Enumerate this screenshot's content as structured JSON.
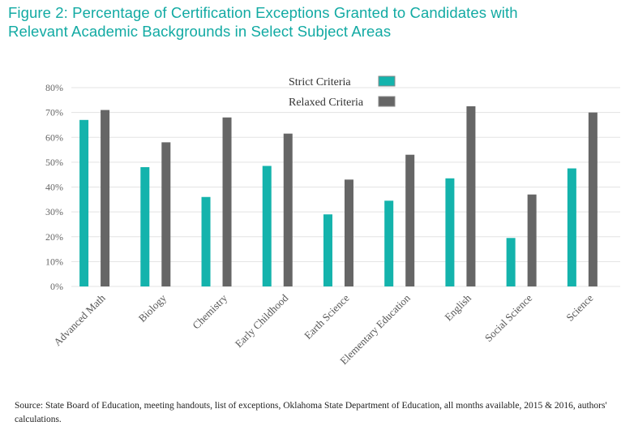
{
  "title_line1": "Figure 2: Percentage of Certification Exceptions Granted to Candidates with",
  "title_line2": "Relevant Academic Backgrounds in Select Subject Areas",
  "source": "Source: State Board of Education, meeting handouts, list of exceptions, Oklahoma State Department of Education, all months available, 2015 & 2016, authors' calculations.",
  "colors": {
    "strict": "#14b3ac",
    "relaxed": "#666666",
    "grid": "#e3e3e3",
    "title": "#12aaa3"
  },
  "chart_data": {
    "type": "bar",
    "title": "Figure 2: Percentage of Certification Exceptions Granted to Candidates with Relevant Academic Backgrounds in Select Subject Areas",
    "xlabel": "",
    "ylabel": "",
    "ylim": [
      0,
      80
    ],
    "yticks": [
      0,
      10,
      20,
      30,
      40,
      50,
      60,
      70,
      80
    ],
    "ytick_labels": [
      "0%",
      "10%",
      "20%",
      "30%",
      "40%",
      "50%",
      "60%",
      "70%",
      "80%"
    ],
    "grid": true,
    "legend_position": "top-center",
    "categories": [
      "Advanced Math",
      "Biology",
      "Chemistry",
      "Early Childhood",
      "Earth Science",
      "Elementary Education",
      "English",
      "Social Science",
      "Science"
    ],
    "series": [
      {
        "name": "Strict Criteria",
        "values": [
          67,
          48,
          36,
          48.5,
          29,
          34.5,
          43.5,
          19.5,
          47.5
        ]
      },
      {
        "name": "Relaxed Criteria",
        "values": [
          71,
          58,
          68,
          61.5,
          43,
          53,
          72.5,
          37,
          70
        ]
      }
    ]
  }
}
